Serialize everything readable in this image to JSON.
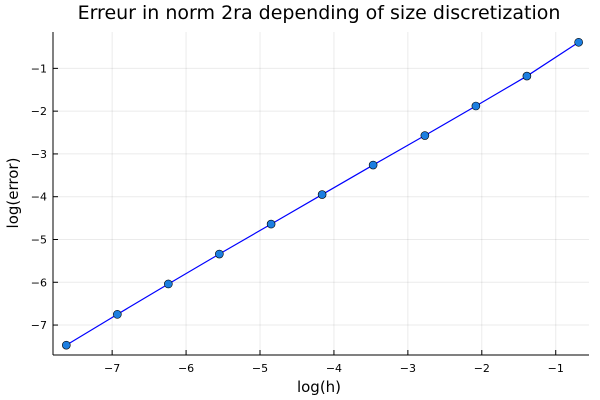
{
  "chart_data": {
    "type": "line",
    "title": "Erreur in norm 2ra depending of size discretization",
    "xlabel": "log(h)",
    "ylabel": "log(error)",
    "xlim": [
      -7.8,
      -0.55
    ],
    "ylim": [
      -7.7,
      -0.15
    ],
    "xticks": [
      -7,
      -6,
      -5,
      -4,
      -3,
      -2,
      -1
    ],
    "yticks": [
      -7,
      -6,
      -5,
      -4,
      -3,
      -2,
      -1
    ],
    "xtick_labels": [
      "−7",
      "−6",
      "−5",
      "−4",
      "−3",
      "−2",
      "−1"
    ],
    "ytick_labels": [
      "−7",
      "−6",
      "−5",
      "−4",
      "−3",
      "−2",
      "−1"
    ],
    "grid": true,
    "legend": "none",
    "series": [
      {
        "x": [
          -7.62,
          -6.93,
          -6.24,
          -5.55,
          -4.85,
          -4.16,
          -3.47,
          -2.77,
          -2.08,
          -1.39,
          -0.69
        ],
        "y": [
          -7.47,
          -6.75,
          -6.04,
          -5.34,
          -4.64,
          -3.95,
          -3.26,
          -2.57,
          -1.88,
          -1.18,
          -0.39
        ],
        "color": "#0000ff",
        "marker_color": "#1c7ee0"
      }
    ]
  }
}
